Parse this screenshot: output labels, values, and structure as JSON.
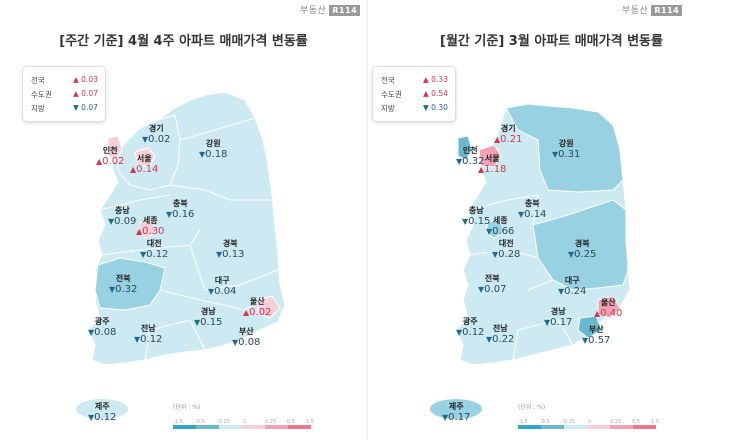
{
  "brand": "부동산",
  "brand_badge": "R114",
  "weekly": {
    "title": "[주간 기준] 4월 4주 아파트 매매가격 변동률",
    "legend": [
      {
        "name": "전국",
        "dir": "up",
        "arrow": "▲",
        "value": "0.03"
      },
      {
        "name": "수도권",
        "dir": "up",
        "arrow": "▲",
        "value": "0.07"
      },
      {
        "name": "지방",
        "dir": "down",
        "arrow": "▼",
        "value": "0.07"
      }
    ],
    "regions": [
      {
        "name": "경기",
        "dir": "down",
        "arrow": "▼",
        "value": "0.02"
      },
      {
        "name": "강원",
        "dir": "down",
        "arrow": "▼",
        "value": "0.18"
      },
      {
        "name": "인천",
        "dir": "up",
        "arrow": "▲",
        "value": "0.02"
      },
      {
        "name": "서울",
        "dir": "up",
        "arrow": "▲",
        "value": "0.14"
      },
      {
        "name": "충북",
        "dir": "down",
        "arrow": "▼",
        "value": "0.16"
      },
      {
        "name": "충남",
        "dir": "down",
        "arrow": "▼",
        "value": "0.09"
      },
      {
        "name": "세종",
        "dir": "up",
        "arrow": "▲",
        "value": "0.30"
      },
      {
        "name": "대전",
        "dir": "down",
        "arrow": "▼",
        "value": "0.12"
      },
      {
        "name": "경북",
        "dir": "down",
        "arrow": "▼",
        "value": "0.13"
      },
      {
        "name": "전북",
        "dir": "down",
        "arrow": "▼",
        "value": "0.32"
      },
      {
        "name": "대구",
        "dir": "down",
        "arrow": "▼",
        "value": "0.04"
      },
      {
        "name": "울산",
        "dir": "up",
        "arrow": "▲",
        "value": "0.02"
      },
      {
        "name": "광주",
        "dir": "down",
        "arrow": "▼",
        "value": "0.08"
      },
      {
        "name": "전남",
        "dir": "down",
        "arrow": "▼",
        "value": "0.12"
      },
      {
        "name": "경남",
        "dir": "down",
        "arrow": "▼",
        "value": "0.15"
      },
      {
        "name": "부산",
        "dir": "down",
        "arrow": "▼",
        "value": "0.08"
      },
      {
        "name": "제주",
        "dir": "down",
        "arrow": "▼",
        "value": "0.12"
      }
    ],
    "scale_unit": "(단위 : %)",
    "scale_ticks": [
      "-1.5",
      "-0.5",
      "-0.25",
      "0",
      "0.25",
      "0.5",
      "1.5"
    ]
  },
  "monthly": {
    "title": "[월간 기준] 3월 아파트 매매가격 변동률",
    "legend": [
      {
        "name": "전국",
        "dir": "up",
        "arrow": "▲",
        "value": "0.33"
      },
      {
        "name": "수도권",
        "dir": "up",
        "arrow": "▲",
        "value": "0.54"
      },
      {
        "name": "지방",
        "dir": "down",
        "arrow": "▼",
        "value": "0.30"
      }
    ],
    "regions": [
      {
        "name": "경기",
        "dir": "up",
        "arrow": "▲",
        "value": "0.21"
      },
      {
        "name": "강원",
        "dir": "down",
        "arrow": "▼",
        "value": "0.31"
      },
      {
        "name": "인천",
        "dir": "down",
        "arrow": "▼",
        "value": "0.32"
      },
      {
        "name": "서울",
        "dir": "up",
        "arrow": "▲",
        "value": "1.18"
      },
      {
        "name": "충북",
        "dir": "down",
        "arrow": "▼",
        "value": "0.14"
      },
      {
        "name": "충남",
        "dir": "down",
        "arrow": "▼",
        "value": "0.15"
      },
      {
        "name": "세종",
        "dir": "down",
        "arrow": "▼",
        "value": "0.66"
      },
      {
        "name": "대전",
        "dir": "down",
        "arrow": "▼",
        "value": "0.28"
      },
      {
        "name": "경북",
        "dir": "down",
        "arrow": "▼",
        "value": "0.25"
      },
      {
        "name": "전북",
        "dir": "down",
        "arrow": "▼",
        "value": "0.07"
      },
      {
        "name": "대구",
        "dir": "down",
        "arrow": "▼",
        "value": "0.24"
      },
      {
        "name": "울산",
        "dir": "up",
        "arrow": "▲",
        "value": "0.40"
      },
      {
        "name": "광주",
        "dir": "down",
        "arrow": "▼",
        "value": "0.12"
      },
      {
        "name": "전남",
        "dir": "down",
        "arrow": "▼",
        "value": "0.22"
      },
      {
        "name": "경남",
        "dir": "down",
        "arrow": "▼",
        "value": "0.17"
      },
      {
        "name": "부산",
        "dir": "down",
        "arrow": "▼",
        "value": "0.57"
      },
      {
        "name": "제주",
        "dir": "down",
        "arrow": "▼",
        "value": "0.17"
      }
    ],
    "scale_unit": "(단위 : %)",
    "scale_ticks": [
      "-1.5",
      "-0.5",
      "-0.25",
      "0",
      "0.25",
      "0.5",
      "1.5"
    ]
  },
  "colors": {
    "land_light": "#cdeaf2",
    "land_mid": "#98d1e1",
    "land_dark": "#69b8cf",
    "rise_light": "#f8cfd8",
    "rise_mid": "#f2a2b4",
    "rise_strong": "#e87791"
  }
}
